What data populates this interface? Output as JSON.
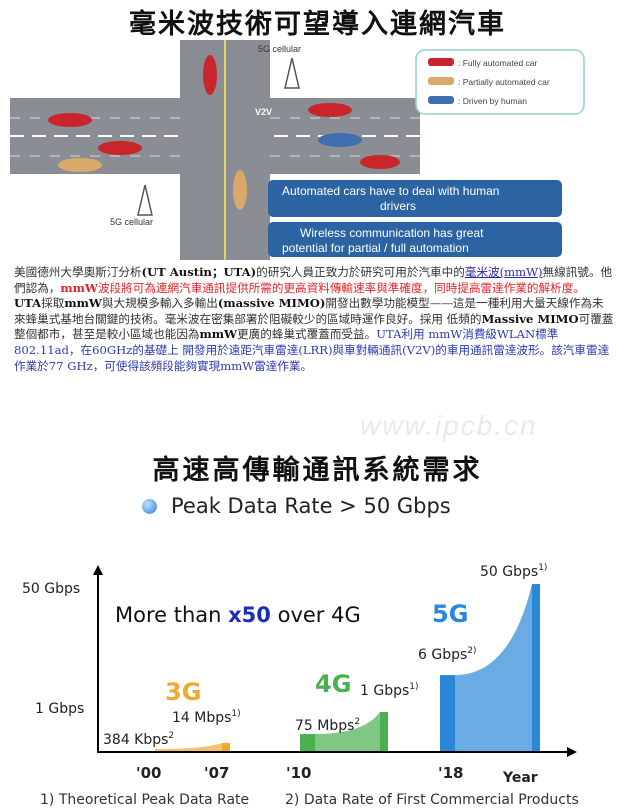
{
  "title": "毫米波技術可望導入連網汽車",
  "diagram": {
    "tower_label_top": "5G cellular",
    "tower_label_bottom": "5G cellular",
    "car_tag": "V2V",
    "legend": [
      {
        "label": ": Fully automated car",
        "color": "#c8262c"
      },
      {
        "label": ": Partially automated car",
        "color": "#d9a86a"
      },
      {
        "label": ": Driven by human",
        "color": "#3f6fb0"
      }
    ],
    "box1": [
      "Automated cars have to deal with human",
      "drivers"
    ],
    "box2": [
      "Wireless communication has great",
      "potential for partial / full automation"
    ],
    "box_color": "#2b63a3"
  },
  "body": {
    "p1_a": "美國德州大學奧斯汀分析",
    "p1_b": "(UT Austin；UTA)",
    "p1_c": "的研究人員正致力於研究可用於汽車中的",
    "p1_link": "毫米波(mmW)",
    "p1_d": "無線訊號。他們認為，",
    "p1_red_b": "mmW",
    "p1_red": "波段將可為連網汽車通訊提供所需的更高資料傳輸速率與準確度，同時提高雷達作業的解析度。",
    "p2_a": "UTA",
    "p2_b": "採取",
    "p2_c": "mmW",
    "p2_d": "與大規模多輸入多輸出",
    "p2_e": "(massive MIMO)",
    "p2_f": "開發出數學功能模型——這是一種利用大量天線作為未來蜂巢式基地台關鍵的技術。毫米波在密集部署於阻礙較少的區域時運作良好。採用 低頻的",
    "p2_g": "Massive MIMO",
    "p2_h": "可覆蓋整個都市，甚至是較小區域也能因為",
    "p2_i": "mmW",
    "p2_j": "更廣的蜂巢式覆蓋而受益。",
    "p2_blue": "UTA利用 mmW消費級WLAN標準802.11ad，在60GHz的基礎上 開發用於遠距汽車雷達(LRR)與車對輛通訊(V2V)的車用通訊雷達波形。該汽車雷達作業於77 GHz，可使得該頻段能夠實現mmW雷達作業。"
  },
  "watermark": "www.ipcb.cn",
  "title2": "高速高傳輸通訊系統需求",
  "peak_label": "Peak Data Rate > 50 Gbps",
  "chart_data": {
    "type": "area",
    "xlabel": "Year",
    "x_ticks": [
      "'00",
      "'07",
      "'10",
      "'18"
    ],
    "y_ticks": [
      "1 Gbps",
      "50 Gbps"
    ],
    "headline": {
      "a": "More than ",
      "b": "x50",
      "c": " over 4G"
    },
    "series": [
      {
        "name": "3G",
        "color": "#f0a830",
        "points": [
          {
            "year": "'00",
            "value_mbps": 0.384,
            "label": "384 Kbps",
            "note": "2"
          },
          {
            "year": "'07",
            "value_mbps": 14,
            "label": "14 Mbps",
            "note": "1)"
          }
        ]
      },
      {
        "name": "4G",
        "color": "#4caf50",
        "points": [
          {
            "year": "'10",
            "value_mbps": 75,
            "label": "75 Mbps",
            "note": "2"
          },
          {
            "year": "",
            "value_mbps": 1000,
            "label": "1 Gbps",
            "note": "1)"
          }
        ]
      },
      {
        "name": "5G",
        "color": "#2b87d8",
        "points": [
          {
            "year": "'18",
            "value_mbps": 6000,
            "label": "6 Gbps",
            "note": "2)"
          },
          {
            "year": "",
            "value_mbps": 50000,
            "label": "50 Gbps",
            "note": "1)"
          }
        ]
      }
    ],
    "footnotes": [
      "1) Theoretical Peak Data Rate",
      "2) Data Rate of First Commercial Products"
    ],
    "grid": false
  }
}
